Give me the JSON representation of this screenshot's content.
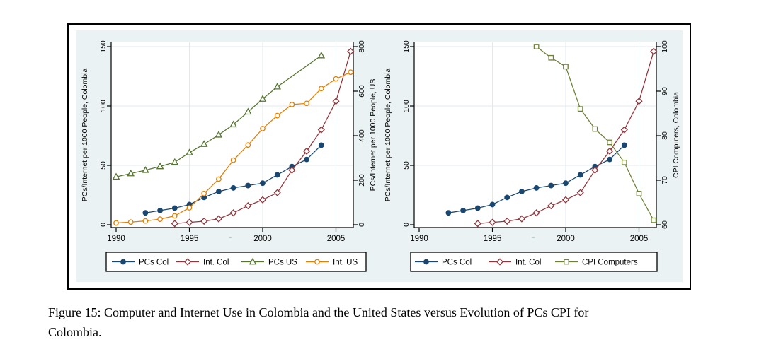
{
  "figure": {
    "caption_lines": [
      "Figure 15: Computer and Internet Use in Colombia and the United States versus Evolution of PCs CPI for",
      "Colombia."
    ]
  },
  "colors": {
    "graph_background": "#eaf2f3",
    "plot_background": "#ffffff",
    "gridline": "#e0eaed",
    "axis": "#000000",
    "navy": "#1a476f",
    "maroon": "#90353b",
    "forest": "#55752f",
    "orange": "#e37e00",
    "olive": "#6e7f38"
  },
  "chart_data": [
    {
      "type": "line",
      "title": "",
      "x_ticks": [
        1990,
        1995,
        2000,
        2005
      ],
      "x_grid": [
        1995,
        2000,
        2005
      ],
      "x_range": [
        1989.6,
        2006.5
      ],
      "left_axis": {
        "label": "PCs/Internet per 1000 People, Colombia",
        "ticks": [
          0,
          50,
          100,
          150
        ],
        "range": [
          0,
          150
        ]
      },
      "right_axis": {
        "label": "PCs/Internet per 1000 People, US",
        "ticks": [
          0,
          200,
          400,
          600,
          800
        ],
        "range": [
          0,
          800
        ]
      },
      "grid": true,
      "legend_position": "bottom",
      "legend": [
        "PCs Col",
        "Int. Col",
        "PCs US",
        "Int. US"
      ],
      "series": [
        {
          "name": "PCs Col",
          "axis": "left",
          "color": "#1a476f",
          "marker": "circle-filled",
          "x": [
            1992,
            1993,
            1994,
            1995,
            1996,
            1997,
            1998,
            1999,
            2000,
            2001,
            2002,
            2003,
            2004
          ],
          "y": [
            10,
            12,
            14,
            17,
            23,
            28,
            31,
            33,
            35,
            42,
            49,
            55,
            67
          ]
        },
        {
          "name": "Int. Col",
          "axis": "left",
          "color": "#90353b",
          "marker": "diamond-open",
          "x": [
            1994,
            1995,
            1996,
            1997,
            1998,
            1999,
            2000,
            2001,
            2002,
            2003,
            2004,
            2005,
            2006
          ],
          "y": [
            1,
            2,
            3,
            5,
            10,
            16,
            21,
            27,
            46,
            62,
            80,
            104,
            146
          ]
        },
        {
          "name": "PCs US",
          "axis": "right",
          "color": "#55752f",
          "marker": "triangle-open",
          "x": [
            1990,
            1991,
            1992,
            1993,
            1994,
            1995,
            1996,
            1997,
            1998,
            1999,
            2000,
            2001,
            2004
          ],
          "y": [
            215,
            230,
            245,
            262,
            281,
            324,
            362,
            404,
            450,
            507,
            565,
            620,
            760
          ]
        },
        {
          "name": "Int. US",
          "axis": "right",
          "color": "#e37e00",
          "marker": "circle-open",
          "x": [
            1990,
            1991,
            1992,
            1993,
            1994,
            1995,
            1996,
            1997,
            1998,
            1999,
            2000,
            2001,
            2002,
            2003,
            2004,
            2005,
            2006
          ],
          "y": [
            8,
            12,
            17,
            25,
            40,
            76,
            140,
            205,
            290,
            358,
            432,
            490,
            540,
            545,
            612,
            655,
            685
          ]
        }
      ]
    },
    {
      "type": "line",
      "title": "",
      "x_ticks": [
        1990,
        1995,
        2000,
        2005
      ],
      "x_grid": [
        1995,
        2000,
        2005
      ],
      "x_range": [
        1989.6,
        2006.5
      ],
      "left_axis": {
        "label": "PCs/Internet per 1000 People, Colombia",
        "ticks": [
          0,
          50,
          100,
          150
        ],
        "range": [
          0,
          150
        ]
      },
      "right_axis": {
        "label": "CPI Computers, Colombia",
        "ticks": [
          60,
          70,
          80,
          90,
          100
        ],
        "range": [
          60,
          100
        ]
      },
      "grid": true,
      "legend_position": "bottom",
      "legend": [
        "PCs Col",
        "Int. Col",
        "CPI Computers"
      ],
      "series": [
        {
          "name": "PCs Col",
          "axis": "left",
          "color": "#1a476f",
          "marker": "circle-filled",
          "x": [
            1992,
            1993,
            1994,
            1995,
            1996,
            1997,
            1998,
            1999,
            2000,
            2001,
            2002,
            2003,
            2004
          ],
          "y": [
            10,
            12,
            14,
            17,
            23,
            28,
            31,
            33,
            35,
            42,
            49,
            55,
            67
          ]
        },
        {
          "name": "Int. Col",
          "axis": "left",
          "color": "#90353b",
          "marker": "diamond-open",
          "x": [
            1994,
            1995,
            1996,
            1997,
            1998,
            1999,
            2000,
            2001,
            2002,
            2003,
            2004,
            2005,
            2006
          ],
          "y": [
            1,
            2,
            3,
            5,
            10,
            16,
            21,
            27,
            46,
            62,
            80,
            104,
            146
          ]
        },
        {
          "name": "CPI Computers",
          "axis": "right",
          "color": "#6e7f38",
          "marker": "square-open",
          "x": [
            1998,
            1999,
            2000,
            2001,
            2002,
            2003,
            2004,
            2005,
            2006
          ],
          "y": [
            100,
            97.5,
            95.5,
            86,
            81.5,
            78.5,
            74,
            67,
            61
          ]
        }
      ]
    }
  ]
}
